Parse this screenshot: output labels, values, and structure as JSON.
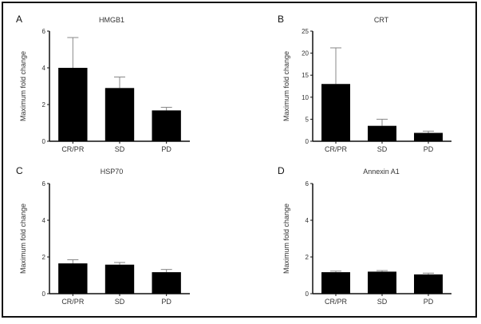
{
  "chart_data": [
    {
      "type": "bar",
      "panel": "A",
      "title": "HMGB1",
      "xlabel": "",
      "ylabel": "Maximum fold change",
      "categories": [
        "CR/PR",
        "SD",
        "PD"
      ],
      "values": [
        4.0,
        2.9,
        1.68
      ],
      "error_upper": [
        5.65,
        3.5,
        1.85
      ],
      "ylim": [
        0,
        6
      ],
      "yticks": [
        0,
        2,
        4,
        6
      ],
      "ytick_labels": [
        "0",
        "2",
        "4",
        "6"
      ],
      "bar_color": "#000000",
      "error_color": "#888888"
    },
    {
      "type": "bar",
      "panel": "B",
      "title": "CRT",
      "xlabel": "",
      "ylabel": "Maximum fold change",
      "categories": [
        "CR/PR",
        "SD",
        "PD"
      ],
      "values": [
        13.0,
        3.5,
        1.9
      ],
      "error_upper": [
        21.2,
        5.0,
        2.3
      ],
      "ylim": [
        0,
        25
      ],
      "yticks": [
        0,
        5,
        10,
        15,
        20,
        25
      ],
      "ytick_labels": [
        "0",
        "5",
        "10",
        "15",
        "20",
        "25"
      ],
      "bar_color": "#000000",
      "error_color": "#888888"
    },
    {
      "type": "bar",
      "panel": "C",
      "title": "HSP70",
      "xlabel": "",
      "ylabel": "Maximum fold change",
      "categories": [
        "CR/PR",
        "SD",
        "PD"
      ],
      "values": [
        1.65,
        1.58,
        1.17
      ],
      "error_upper": [
        1.85,
        1.7,
        1.32
      ],
      "ylim": [
        0,
        6
      ],
      "yticks": [
        0,
        2,
        4,
        6
      ],
      "ytick_labels": [
        "0",
        "2",
        "4",
        "6"
      ],
      "bar_color": "#000000",
      "error_color": "#888888"
    },
    {
      "type": "bar",
      "panel": "D",
      "title": "Annexin A1",
      "xlabel": "",
      "ylabel": "Maximum fold change",
      "categories": [
        "CR/PR",
        "SD",
        "PD"
      ],
      "values": [
        1.17,
        1.2,
        1.05
      ],
      "error_upper": [
        1.23,
        1.26,
        1.12
      ],
      "ylim": [
        0,
        6
      ],
      "yticks": [
        0,
        2,
        4,
        6
      ],
      "ytick_labels": [
        "0",
        "2",
        "4",
        "6"
      ],
      "bar_color": "#000000",
      "error_color": "#888888"
    }
  ]
}
